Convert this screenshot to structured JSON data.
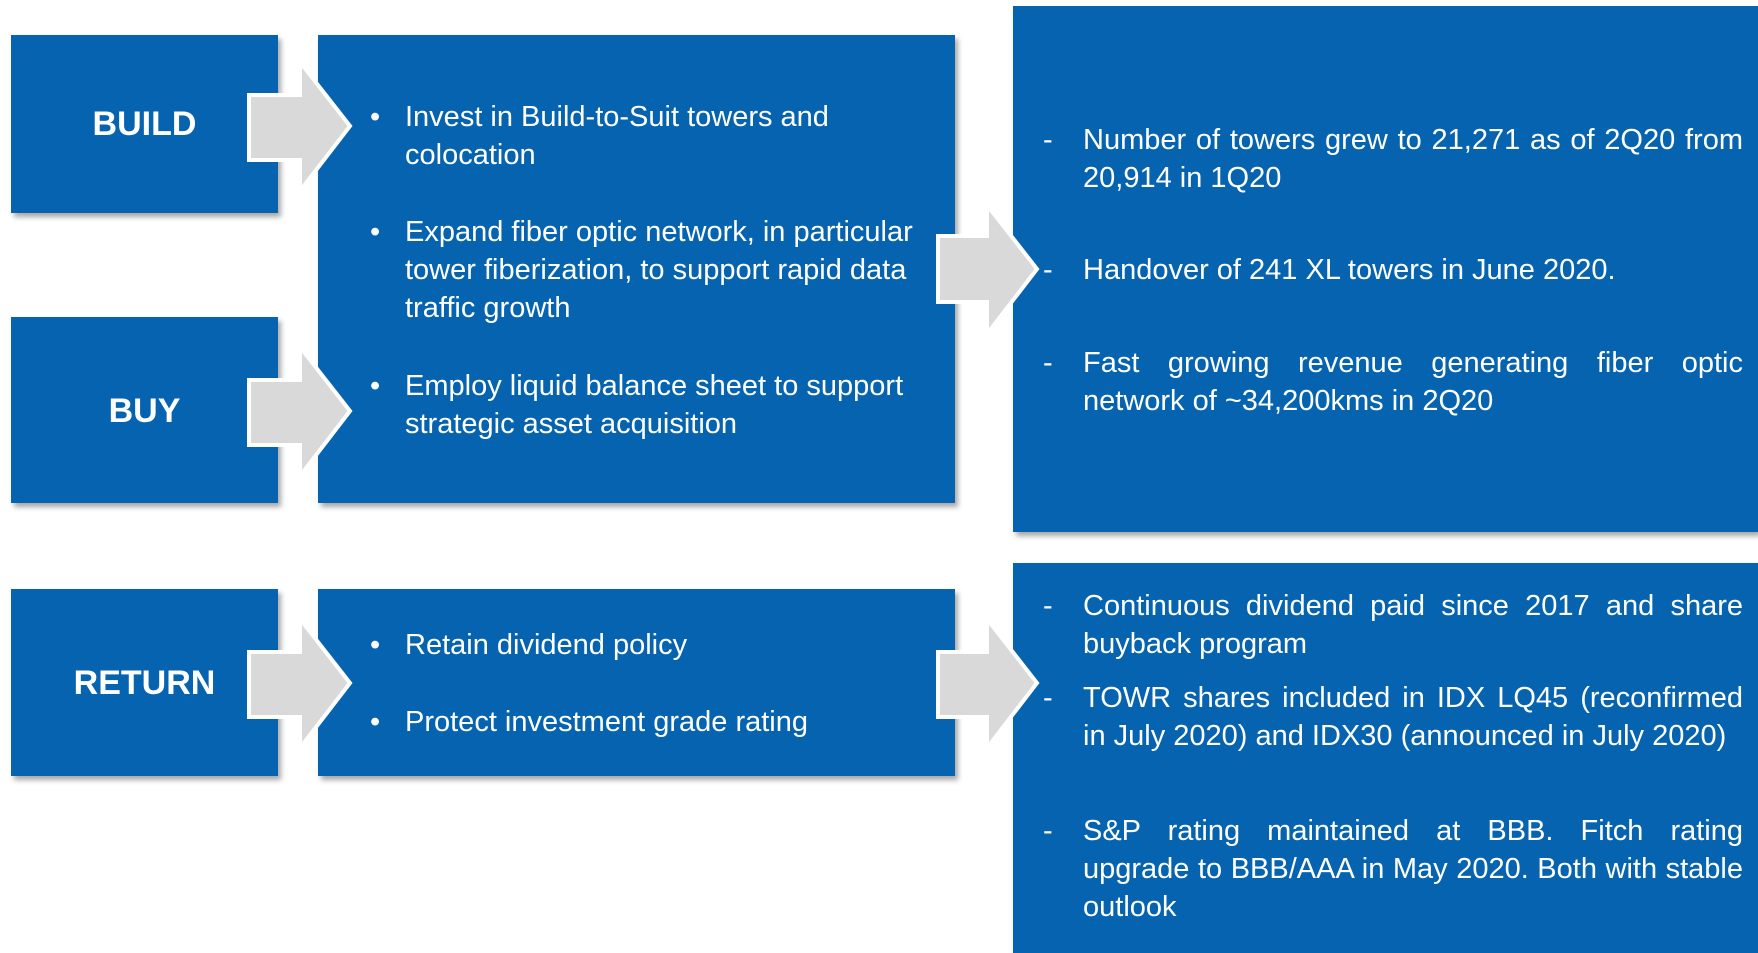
{
  "build_buy": {
    "labels": [
      "BUILD",
      "BUY"
    ],
    "actions": [
      "Invest in Build-to-Suit towers and colocation",
      "Expand fiber optic network, in particular tower fiberization, to support rapid data traffic growth",
      "Employ liquid balance sheet to support strategic asset acquisition"
    ],
    "results": [
      "Number of towers grew to 21,271 as of 2Q20 from 20,914 in 1Q20",
      "Handover of 241 XL towers in June 2020.",
      "Fast growing revenue generating fiber optic network of ~34,200kms in 2Q20"
    ]
  },
  "return": {
    "labels": [
      "RETURN"
    ],
    "actions": [
      "Retain dividend policy",
      "Protect investment grade rating"
    ],
    "results": [
      "Continuous dividend paid since 2017 and share buyback program",
      "TOWR shares included in IDX LQ45 (reconfirmed in July 2020) and IDX30 (announced in July 2020)",
      "S&P rating maintained at BBB. Fitch rating upgrade to BBB/AAA in May 2020. Both with stable outlook"
    ]
  }
}
